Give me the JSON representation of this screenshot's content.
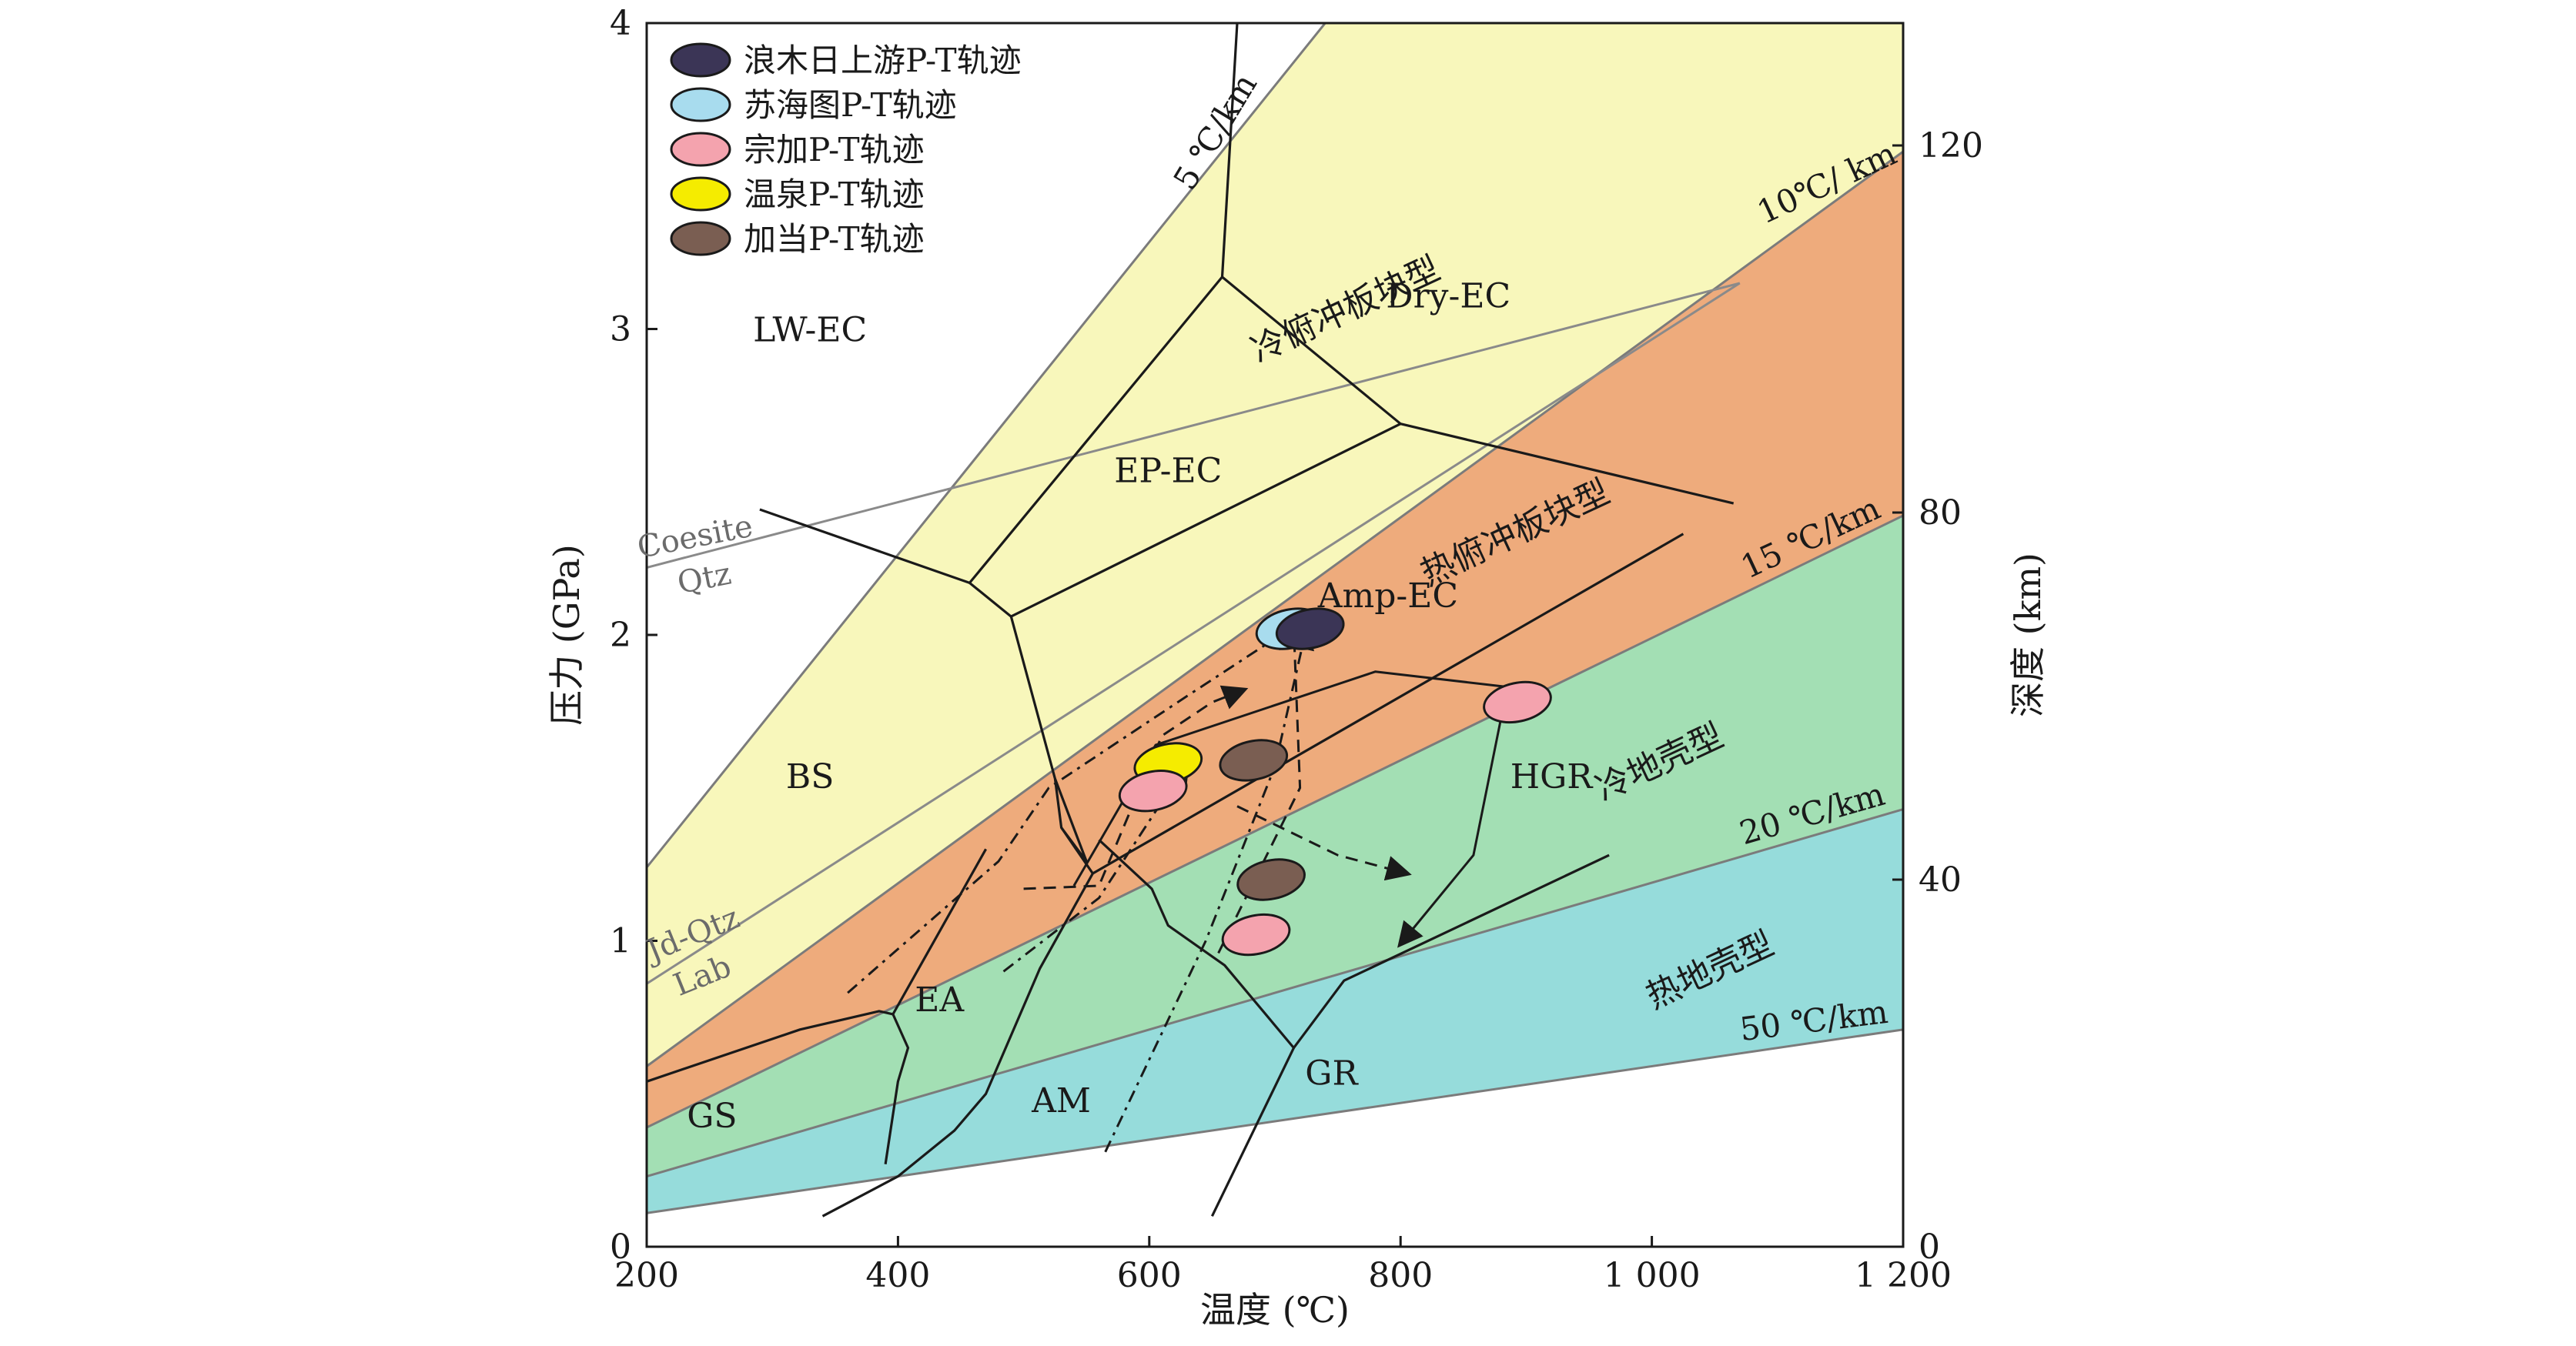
{
  "chart_data": {
    "type": "scatter",
    "title": "",
    "xlabel": "温度 (℃)",
    "ylabel": "压力 (GPa)",
    "ylabel_right": "深度 (km)",
    "xlim": [
      200,
      1200
    ],
    "ylim": [
      0,
      4
    ],
    "right_axis_lim": [
      0,
      134
    ],
    "grid": false,
    "legend_position": "top-left",
    "x_ticks": [
      {
        "v": 200,
        "label": "200"
      },
      {
        "v": 400,
        "label": "400"
      },
      {
        "v": 600,
        "label": "600"
      },
      {
        "v": 800,
        "label": "800"
      },
      {
        "v": 1000,
        "label": "1 000"
      },
      {
        "v": 1200,
        "label": "1 200"
      }
    ],
    "y_ticks": [
      {
        "v": 0,
        "label": "0"
      },
      {
        "v": 1,
        "label": "1"
      },
      {
        "v": 2,
        "label": "2"
      },
      {
        "v": 3,
        "label": "3"
      },
      {
        "v": 4,
        "label": "4"
      }
    ],
    "right_ticks": [
      {
        "v": 0,
        "label": "0"
      },
      {
        "v": 1.2,
        "label": "40"
      },
      {
        "v": 2.4,
        "label": "80"
      },
      {
        "v": 3.6,
        "label": "120"
      }
    ],
    "legend": [
      {
        "label": "浪木日上游P-T轨迹",
        "color": "#3b3556"
      },
      {
        "label": "苏海图P-T轨迹",
        "color": "#a8dcee"
      },
      {
        "label": "宗加P-T轨迹",
        "color": "#f4a3ae"
      },
      {
        "label": "温泉P-T轨迹",
        "color": "#f5ec00"
      },
      {
        "label": "加当P-T轨迹",
        "color": "#7a5e52"
      }
    ],
    "gradient_zones": [
      {
        "name": "冷俯冲板块型",
        "color": "#f8f7bb"
      },
      {
        "name": "热俯冲板块型",
        "color": "#eeab7c"
      },
      {
        "name": "冷地壳型",
        "color": "#a3dfb4"
      },
      {
        "name": "热地壳型",
        "color": "#96dcdb"
      }
    ],
    "gradients": [
      {
        "label": "5 ℃/km",
        "line": [
          [
            200,
            1.24
          ],
          [
            740,
            4.0
          ]
        ]
      },
      {
        "label": "10℃/ km",
        "line": [
          [
            200,
            0.59
          ],
          [
            1200,
            3.58
          ]
        ]
      },
      {
        "label": "15 ℃/km",
        "line": [
          [
            200,
            0.39
          ],
          [
            1200,
            2.39
          ]
        ]
      },
      {
        "label": "20 ℃/km",
        "line": [
          [
            200,
            0.23
          ],
          [
            1200,
            1.43
          ]
        ]
      },
      {
        "label": "50 ℃/km",
        "line": [
          [
            200,
            0.11
          ],
          [
            1200,
            0.71
          ]
        ]
      }
    ],
    "reactions": [
      {
        "label1": "Coesite",
        "label2": "Qtz",
        "line": [
          [
            200,
            2.22
          ],
          [
            1070,
            3.15
          ]
        ]
      },
      {
        "label1": "Jd-Qtz",
        "label2": "Lab",
        "line": [
          [
            200,
            0.86
          ],
          [
            1070,
            3.15
          ]
        ]
      }
    ],
    "facies_labels": [
      {
        "label": "LW-EC",
        "x": 330,
        "y": 2.96
      },
      {
        "label": "Dry-EC",
        "x": 838,
        "y": 3.07
      },
      {
        "label": "EP-EC",
        "x": 615,
        "y": 2.5
      },
      {
        "label": "Amp-EC",
        "x": 790,
        "y": 2.09
      },
      {
        "label": "BS",
        "x": 330,
        "y": 1.5
      },
      {
        "label": "HGR",
        "x": 920,
        "y": 1.5
      },
      {
        "label": "EA",
        "x": 433,
        "y": 0.77
      },
      {
        "label": "AM",
        "x": 530,
        "y": 0.44
      },
      {
        "label": "GR",
        "x": 745,
        "y": 0.53
      },
      {
        "label": "GS",
        "x": 252,
        "y": 0.39
      }
    ],
    "zone_labels": [
      {
        "label": "冷俯冲板块型",
        "x": 760,
        "y": 3.03
      },
      {
        "label": "热俯冲板块型",
        "x": 895,
        "y": 2.3
      },
      {
        "label": "冷地壳型",
        "x": 1010,
        "y": 1.55
      },
      {
        "label": "热地壳型",
        "x": 1050,
        "y": 0.87
      }
    ],
    "facies_boundaries": [
      [
        [
          670,
          4.0
        ],
        [
          658,
          3.17
        ],
        [
          800,
          2.69
        ],
        [
          1065,
          2.43
        ]
      ],
      [
        [
          658,
          3.17
        ],
        [
          457,
          2.17
        ],
        [
          290,
          2.41
        ]
      ],
      [
        [
          457,
          2.17
        ],
        [
          490,
          2.06
        ],
        [
          800,
          2.69
        ]
      ],
      [
        [
          490,
          2.06
        ],
        [
          525,
          1.53
        ],
        [
          530,
          1.37
        ],
        [
          555,
          1.22
        ],
        [
          1025,
          2.33
        ]
      ],
      [
        [
          525,
          1.53
        ],
        [
          550,
          1.26
        ],
        [
          530,
          1.37
        ]
      ],
      [
        [
          200,
          0.54
        ],
        [
          322,
          0.71
        ],
        [
          385,
          0.77
        ],
        [
          396,
          0.76
        ],
        [
          470,
          1.3
        ]
      ],
      [
        [
          396,
          0.76
        ],
        [
          408,
          0.65
        ],
        [
          400,
          0.54
        ],
        [
          390,
          0.27
        ]
      ],
      [
        [
          340,
          0.1
        ],
        [
          400,
          0.23
        ],
        [
          445,
          0.38
        ],
        [
          470,
          0.5
        ],
        [
          513,
          0.91
        ],
        [
          555,
          1.22
        ]
      ],
      [
        [
          560,
          1.33
        ],
        [
          602,
          1.17
        ],
        [
          615,
          1.05
        ],
        [
          660,
          0.92
        ],
        [
          715,
          0.65
        ],
        [
          755,
          0.87
        ],
        [
          966,
          1.28
        ]
      ],
      [
        [
          715,
          0.65
        ],
        [
          650,
          0.1
        ]
      ]
    ],
    "pt_paths": [
      {
        "style": "dashed",
        "points": [
          [
            500,
            1.17
          ],
          [
            560,
            1.18
          ],
          [
            610,
            1.67
          ],
          [
            650,
            1.78
          ],
          [
            675,
            1.82
          ]
        ]
      },
      {
        "style": "dashdot",
        "points": [
          [
            565,
            0.31
          ],
          [
            645,
            1.0
          ],
          [
            700,
            1.57
          ],
          [
            725,
            2.02
          ]
        ]
      },
      {
        "style": "dashdot",
        "points": [
          [
            360,
            0.83
          ],
          [
            480,
            1.26
          ],
          [
            520,
            1.5
          ],
          [
            630,
            1.8
          ],
          [
            712,
            2.02
          ]
        ]
      },
      {
        "style": "dashed",
        "points": [
          [
            655,
            0.96
          ],
          [
            720,
            1.5
          ],
          [
            715,
            2.02
          ]
        ]
      },
      {
        "style": "dashdot",
        "points": [
          [
            484,
            0.9
          ],
          [
            560,
            1.14
          ],
          [
            630,
            1.58
          ]
        ]
      },
      {
        "style": "dashed",
        "points": [
          [
            670,
            1.44
          ],
          [
            750,
            1.28
          ],
          [
            805,
            1.22
          ]
        ]
      },
      {
        "style": "solid",
        "points": [
          [
            540,
            1.18
          ],
          [
            605,
            1.64
          ],
          [
            780,
            1.88
          ],
          [
            885,
            1.83
          ],
          [
            858,
            1.28
          ],
          [
            800,
            0.99
          ]
        ]
      }
    ],
    "pt_points": [
      {
        "series": "苏海图P-T轨迹",
        "T": 712,
        "P": 2.02
      },
      {
        "series": "浪木日上游P-T轨迹",
        "T": 728,
        "P": 2.02
      },
      {
        "series": "宗加P-T轨迹",
        "T": 893,
        "P": 1.78
      },
      {
        "series": "温泉P-T轨迹",
        "T": 615,
        "P": 1.58
      },
      {
        "series": "宗加P-T轨迹",
        "T": 603,
        "P": 1.49
      },
      {
        "series": "加当P-T轨迹",
        "T": 683,
        "P": 1.59
      },
      {
        "series": "加当P-T轨迹",
        "T": 697,
        "P": 1.2
      },
      {
        "series": "宗加P-T轨迹",
        "T": 685,
        "P": 1.02
      }
    ]
  }
}
